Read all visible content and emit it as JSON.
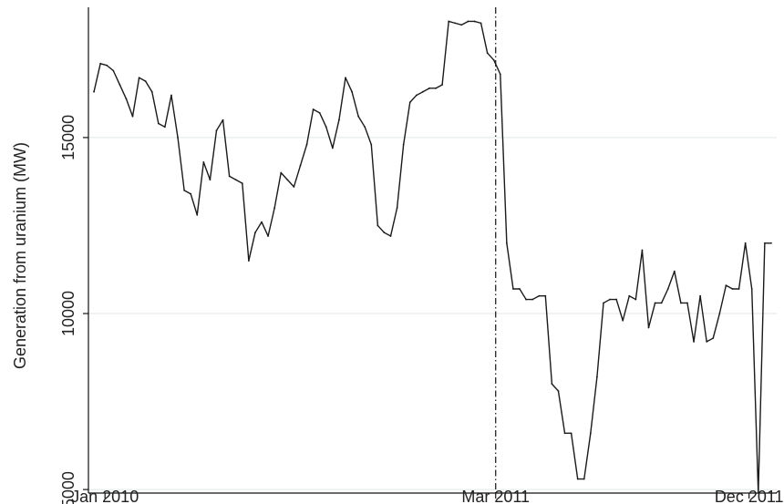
{
  "chart_data": {
    "type": "line",
    "title": "",
    "xlabel": "",
    "ylabel": "Generation from uranium  (MW)",
    "x_ticks": [
      "Jan 2010",
      "Mar 2011",
      "Dec 2011"
    ],
    "y_ticks": [
      "5000",
      "10000",
      "15000"
    ],
    "ylim": [
      4900,
      18700
    ],
    "xlim": [
      "2009-12-14",
      "2011-12-31"
    ],
    "grid": "horizontal",
    "annotations": [
      {
        "type": "vertical-dashed-line",
        "x": "2011-03-01"
      }
    ],
    "series": [
      {
        "x": [
          "2009-12-20",
          "2009-12-27",
          "2010-01-03",
          "2010-01-10",
          "2010-01-17",
          "2010-01-24",
          "2010-01-31",
          "2010-02-07",
          "2010-02-14",
          "2010-02-21",
          "2010-02-28",
          "2010-03-07",
          "2010-03-14",
          "2010-03-21",
          "2010-03-28",
          "2010-04-04",
          "2010-04-11",
          "2010-04-18",
          "2010-04-25",
          "2010-05-02",
          "2010-05-09",
          "2010-05-16",
          "2010-05-23",
          "2010-05-30",
          "2010-06-06",
          "2010-06-13",
          "2010-06-20",
          "2010-06-27",
          "2010-07-04",
          "2010-07-11",
          "2010-07-18",
          "2010-07-25",
          "2010-08-01",
          "2010-08-08",
          "2010-08-15",
          "2010-08-22",
          "2010-08-29",
          "2010-09-05",
          "2010-09-12",
          "2010-09-19",
          "2010-09-26",
          "2010-10-03",
          "2010-10-10",
          "2010-10-17",
          "2010-10-24",
          "2010-10-31",
          "2010-11-07",
          "2010-11-14",
          "2010-11-21",
          "2010-11-28",
          "2010-12-05",
          "2010-12-12",
          "2010-12-19",
          "2010-12-26",
          "2011-01-02",
          "2011-01-09",
          "2011-01-16",
          "2011-01-23",
          "2011-01-30",
          "2011-02-06",
          "2011-02-13",
          "2011-02-20",
          "2011-02-27",
          "2011-03-06",
          "2011-03-13",
          "2011-03-20",
          "2011-03-27",
          "2011-04-03",
          "2011-04-10",
          "2011-04-17",
          "2011-04-24",
          "2011-05-01",
          "2011-05-08",
          "2011-05-15",
          "2011-05-22",
          "2011-05-29",
          "2011-06-05",
          "2011-06-12",
          "2011-06-19",
          "2011-06-26",
          "2011-07-03",
          "2011-07-10",
          "2011-07-17",
          "2011-07-24",
          "2011-07-31",
          "2011-08-07",
          "2011-08-14",
          "2011-08-21",
          "2011-08-28",
          "2011-09-04",
          "2011-09-11",
          "2011-09-18",
          "2011-09-25",
          "2011-10-02",
          "2011-10-09",
          "2011-10-16",
          "2011-10-23",
          "2011-10-30",
          "2011-11-06",
          "2011-11-13",
          "2011-11-20",
          "2011-11-27",
          "2011-12-04",
          "2011-12-11",
          "2011-12-18",
          "2011-12-25"
        ],
        "values": [
          16300,
          17100,
          17050,
          16900,
          16500,
          16100,
          15600,
          16700,
          16600,
          16300,
          15400,
          15300,
          16200,
          15000,
          13500,
          13400,
          12800,
          14300,
          13800,
          15200,
          15500,
          13900,
          13800,
          13700,
          11500,
          12300,
          12600,
          12200,
          13000,
          14000,
          13800,
          13600,
          14200,
          14800,
          15800,
          15700,
          15300,
          14700,
          15500,
          16700,
          16300,
          15600,
          15300,
          14800,
          12500,
          12300,
          12200,
          13000,
          14800,
          16000,
          16200,
          16300,
          16400,
          16400,
          16500,
          18300,
          18250,
          18200,
          18300,
          18300,
          18250,
          17400,
          17200,
          16800,
          12000,
          10700,
          10700,
          10400,
          10400,
          10500,
          10500,
          8000,
          7800,
          6600,
          6600,
          5300,
          5300,
          6600,
          8200,
          10300,
          10400,
          10400,
          9800,
          10500,
          10400,
          11800,
          9600,
          10300,
          10300,
          10700,
          11200,
          10300,
          10300,
          9200,
          10500,
          9200,
          9300,
          10000,
          10800,
          10700,
          10700,
          12000,
          10700,
          4900,
          12000,
          12000
        ]
      }
    ]
  }
}
